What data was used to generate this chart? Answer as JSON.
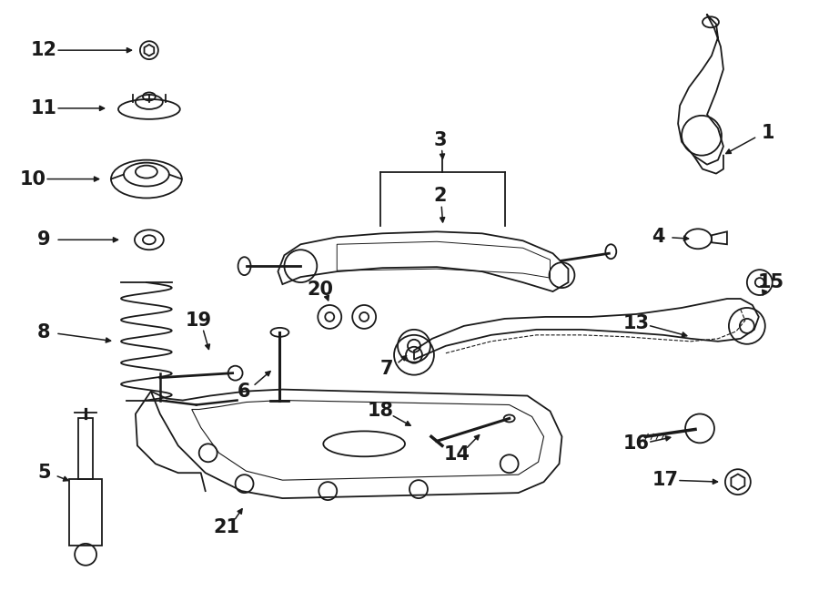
{
  "bg_color": "#ffffff",
  "line_color": "#1a1a1a",
  "fig_width": 9.0,
  "fig_height": 6.61,
  "dpi": 100,
  "lw": 1.3
}
